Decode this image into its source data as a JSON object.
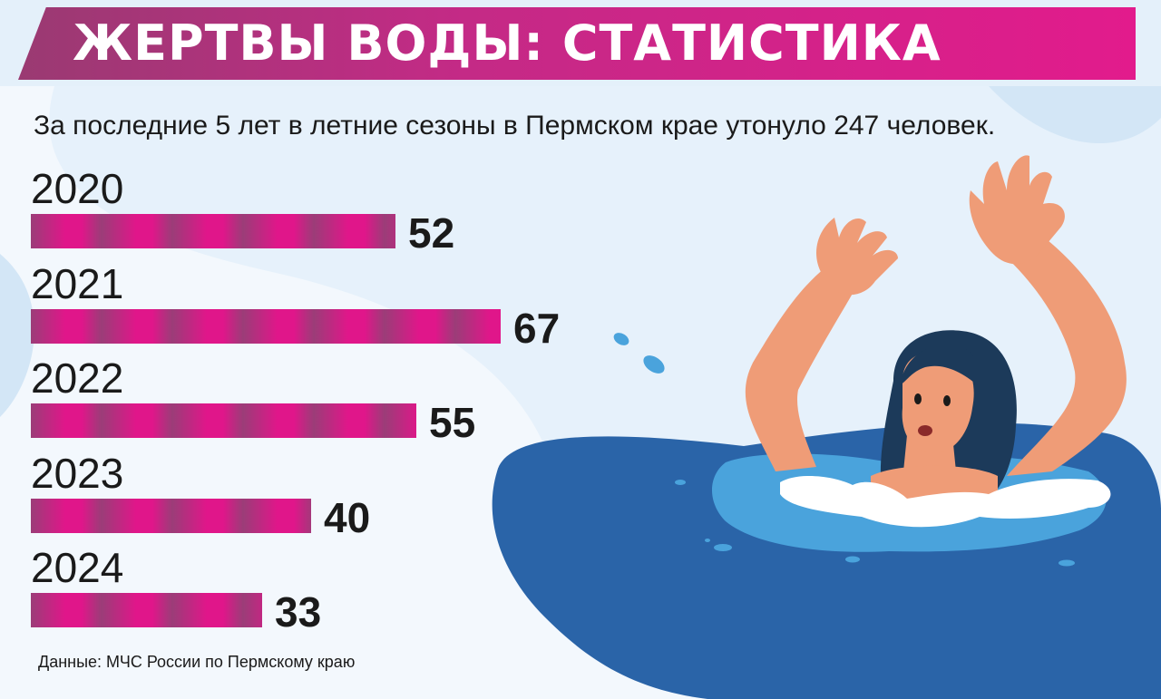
{
  "header": {
    "title": "ЖЕРТВЫ ВОДЫ: СТАТИСТИКА"
  },
  "subtitle": "За последние 5 лет в летние сезоны в Пермском крае утонуло 247 человек.",
  "source": "Данные: МЧС России по Пермскому краю",
  "colors": {
    "bar_light": "#e0168a",
    "bar_dark": "#9b3d78",
    "water_dark": "#2a64a8",
    "water_light": "#4aa3dc",
    "skin": "#ef9c77",
    "hair": "#1c3a5a"
  },
  "illustration": {
    "icon": "drowning-woman-icon"
  },
  "chart_data": {
    "type": "bar",
    "orientation": "horizontal",
    "categories": [
      "2020",
      "2021",
      "2022",
      "2023",
      "2024"
    ],
    "values": [
      52,
      67,
      55,
      40,
      33
    ],
    "data_labels": [
      "52",
      "67",
      "55",
      "40",
      "33"
    ],
    "title": "ЖЕРТВЫ ВОДЫ: СТАТИСТИКА",
    "xlim": [
      0,
      67
    ],
    "grid": false
  }
}
